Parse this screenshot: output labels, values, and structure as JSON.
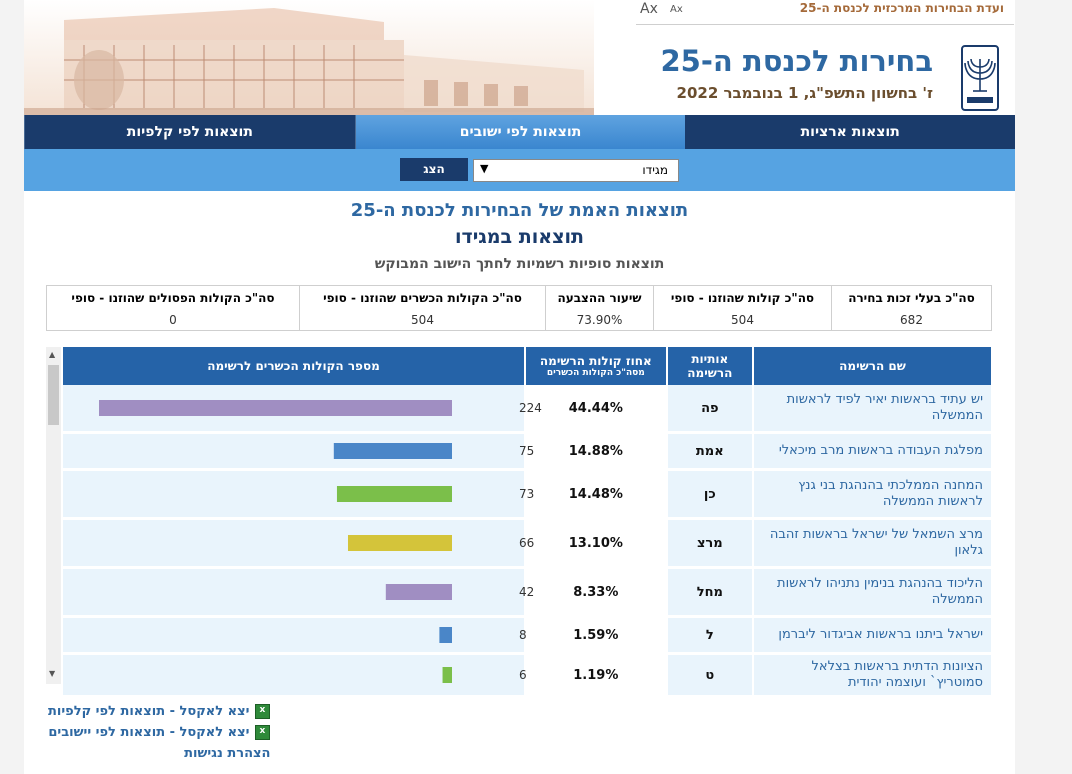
{
  "header": {
    "committee": "ועדת הבחירות המרכזית לכנסת ה-25",
    "font_small": "Ax",
    "font_large": "Ax",
    "title": "בחירות לכנסת ה-25",
    "date": "ז' בחשוון התשפ\"ג, 1 בנובמבר 2022"
  },
  "nav": {
    "tabs": [
      {
        "label": "תוצאות ארציות",
        "active": false
      },
      {
        "label": "תוצאות לפי ישובים",
        "active": true
      },
      {
        "label": "תוצאות לפי קלפיות",
        "active": false
      }
    ]
  },
  "filter": {
    "selected": "מגידו",
    "show_label": "הצג"
  },
  "headings": {
    "true_results": "תוצאות האמת של הבחירות לכנסת ה-25",
    "place": "תוצאות במגידו",
    "sub": "תוצאות סופיות רשמיות לחתך הישוב המבוקש"
  },
  "summary": {
    "headers": [
      "סה\"כ בעלי זכות בחירה",
      "סה\"כ קולות שהוזנו - סופי",
      "שיעור ההצבעה",
      "סה\"כ הקולות הכשרים שהוזנו - סופי",
      "סה\"כ הקולות הפסולים שהוזנו - סופי"
    ],
    "values": [
      "682",
      "504",
      "73.90%",
      "504",
      "0"
    ]
  },
  "results": {
    "headers": {
      "name": "שם הרשימה",
      "abbr": "אותיות הרשימה",
      "pct": "אחוז קולות הרשימה",
      "pct_sub": "מסה\"כ הקולות הכשרים",
      "votes": "מספר הקולות הכשרים לרשימה"
    },
    "max_votes": 224,
    "rows": [
      {
        "name": "יש עתיד בראשות יאיר לפיד לראשות הממשלה",
        "abbr": "פה",
        "pct": "44.44%",
        "votes": 224,
        "votes_label": "224",
        "color": "#a08ec2"
      },
      {
        "name": "מפלגת העבודה בראשות מרב מיכאלי",
        "abbr": "אמת",
        "pct": "14.88%",
        "votes": 75,
        "votes_label": "75",
        "color": "#4a86c8"
      },
      {
        "name": "המחנה הממלכתי בהנהגת בני גנץ לראשות הממשלה",
        "abbr": "כן",
        "pct": "14.48%",
        "votes": 73,
        "votes_label": "73",
        "color": "#7bbf4a"
      },
      {
        "name": "מרצ השמאל של ישראל בראשות זהבה גלאון",
        "abbr": "מרצ",
        "pct": "13.10%",
        "votes": 66,
        "votes_label": "66",
        "color": "#d4c43a"
      },
      {
        "name": "הליכוד בהנהגת בנימין נתניהו לראשות הממשלה",
        "abbr": "מחל",
        "pct": "8.33%",
        "votes": 42,
        "votes_label": "42",
        "color": "#a08ec2"
      },
      {
        "name": "ישראל ביתנו בראשות אביגדור ליברמן",
        "abbr": "ל",
        "pct": "1.59%",
        "votes": 8,
        "votes_label": "8",
        "color": "#4a86c8"
      },
      {
        "name": "הציונות הדתית בראשות בצלאל סמוטריץ` ועוצמה יהודית",
        "abbr": "ט",
        "pct": "1.19%",
        "votes": 6,
        "votes_label": "6",
        "color": "#7bbf4a"
      }
    ]
  },
  "links": {
    "excel_booths": "יצא לאקסל - תוצאות לפי קלפיות",
    "excel_towns": "יצא לאקסל - תוצאות לפי יישובים",
    "accessibility": "הצהרת נגישות"
  }
}
